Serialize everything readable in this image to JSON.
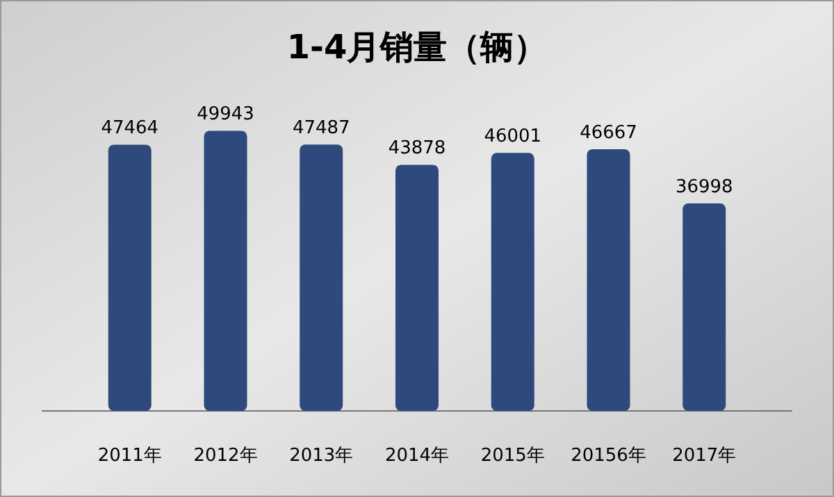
{
  "chart_data": {
    "type": "bar",
    "title": "1-4月销量（辆）",
    "categories": [
      "2011年",
      "2012年",
      "2013年",
      "2014年",
      "2015年",
      "20156年",
      "2017年"
    ],
    "values": [
      47464,
      49943,
      47487,
      43878,
      46001,
      46667,
      36998
    ],
    "color": "#2e4a7c",
    "data_labels": true
  }
}
